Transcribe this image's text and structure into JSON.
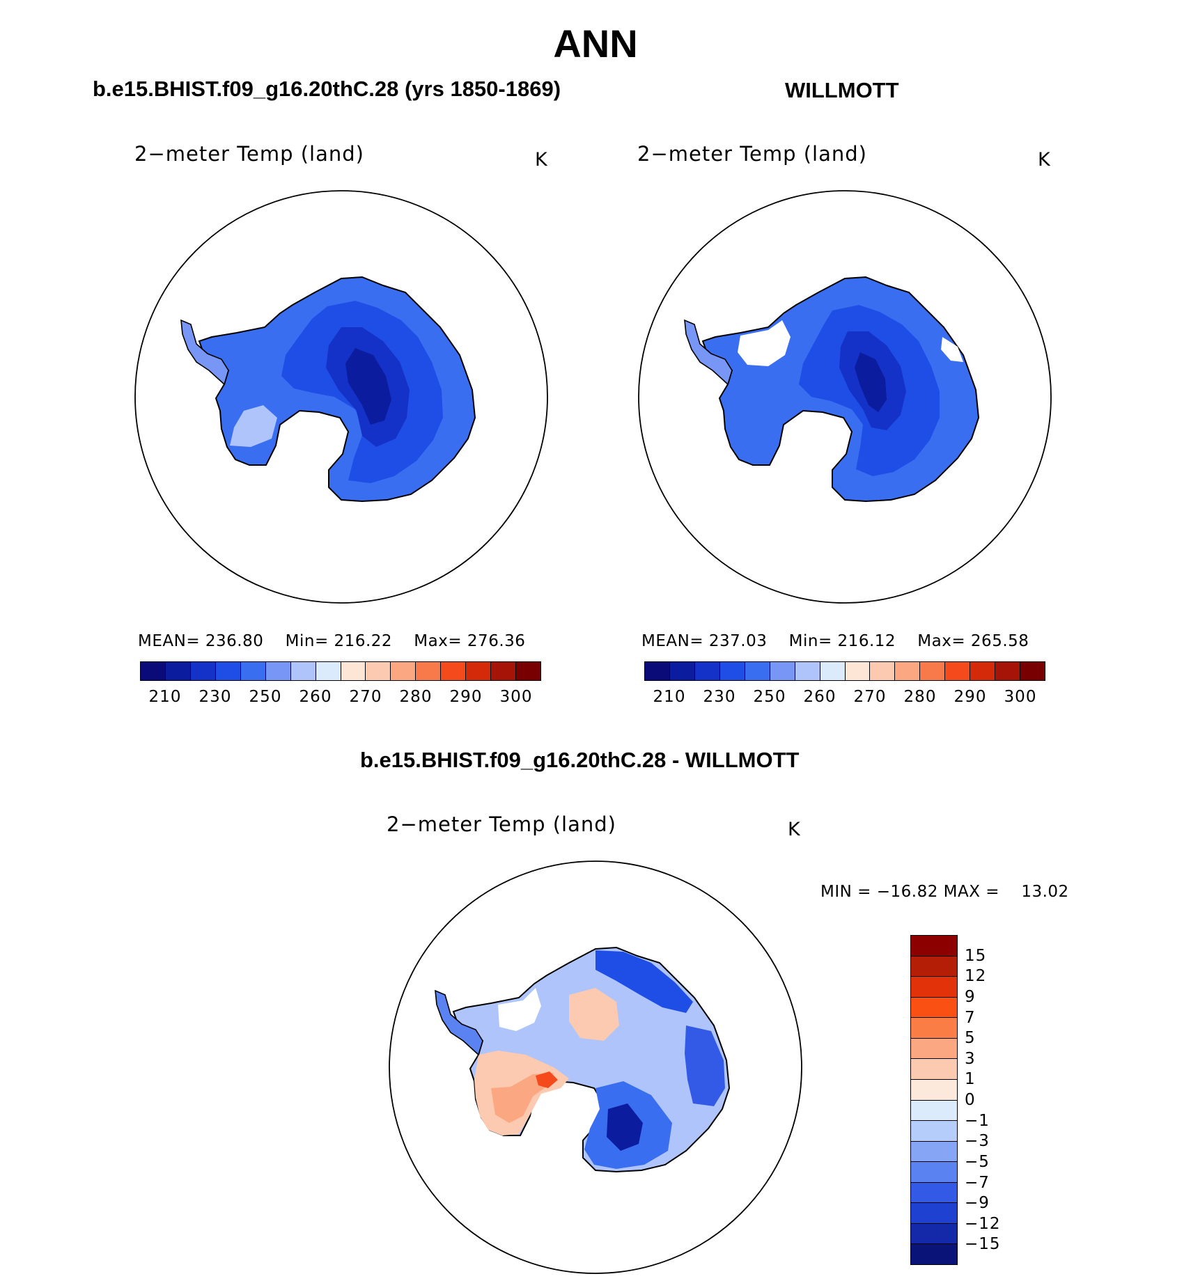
{
  "title": "ANN",
  "panels": {
    "model": {
      "title": "b.e15.BHIST.f09_g16.20thC.28 (yrs 1850-1869)",
      "field": "2−meter Temp (land)",
      "units": "K",
      "mean_label": "MEAN=",
      "mean": "236.80",
      "min_label": "Min=",
      "min": "216.22",
      "max_label": "Max=",
      "max": "276.36"
    },
    "obs": {
      "title": "WILLMOTT",
      "field": "2−meter Temp (land)",
      "units": "K",
      "mean_label": "MEAN=",
      "mean": "237.03",
      "min_label": "Min=",
      "min": "216.12",
      "max_label": "Max=",
      "max": "265.58"
    },
    "diff": {
      "title": "b.e15.BHIST.f09_g16.20thC.28 - WILLMOTT",
      "field": "2−meter Temp (land)",
      "units": "K",
      "minmax_text": "MIN = −16.82 MAX =",
      "max": "13.02"
    }
  },
  "abs_colorbar": {
    "colors": [
      "#0a0a78",
      "#0c1c9e",
      "#1432c8",
      "#1e4ee6",
      "#3a6ef0",
      "#7896f5",
      "#aec4fa",
      "#dcebfc",
      "#fde6d6",
      "#fccab0",
      "#fba882",
      "#f87a4a",
      "#f44a1c",
      "#d42a0a",
      "#a61408",
      "#780000"
    ],
    "labels": [
      "210",
      "230",
      "250",
      "260",
      "270",
      "280",
      "290",
      "300"
    ]
  },
  "diff_colorbar": {
    "colors": [
      "#8c0000",
      "#b41e06",
      "#e1320a",
      "#fa5014",
      "#fa7d46",
      "#fba882",
      "#fccab0",
      "#fde8dc",
      "#dcebfc",
      "#b4cdfa",
      "#87a5f5",
      "#5a82f0",
      "#325ae6",
      "#1e41d2",
      "#1428aa",
      "#0a1478"
    ],
    "labels": [
      "15",
      "12",
      "9",
      "7",
      "5",
      "3",
      "1",
      "0",
      "−1",
      "−3",
      "−5",
      "−7",
      "−9",
      "−12",
      "−15"
    ]
  }
}
